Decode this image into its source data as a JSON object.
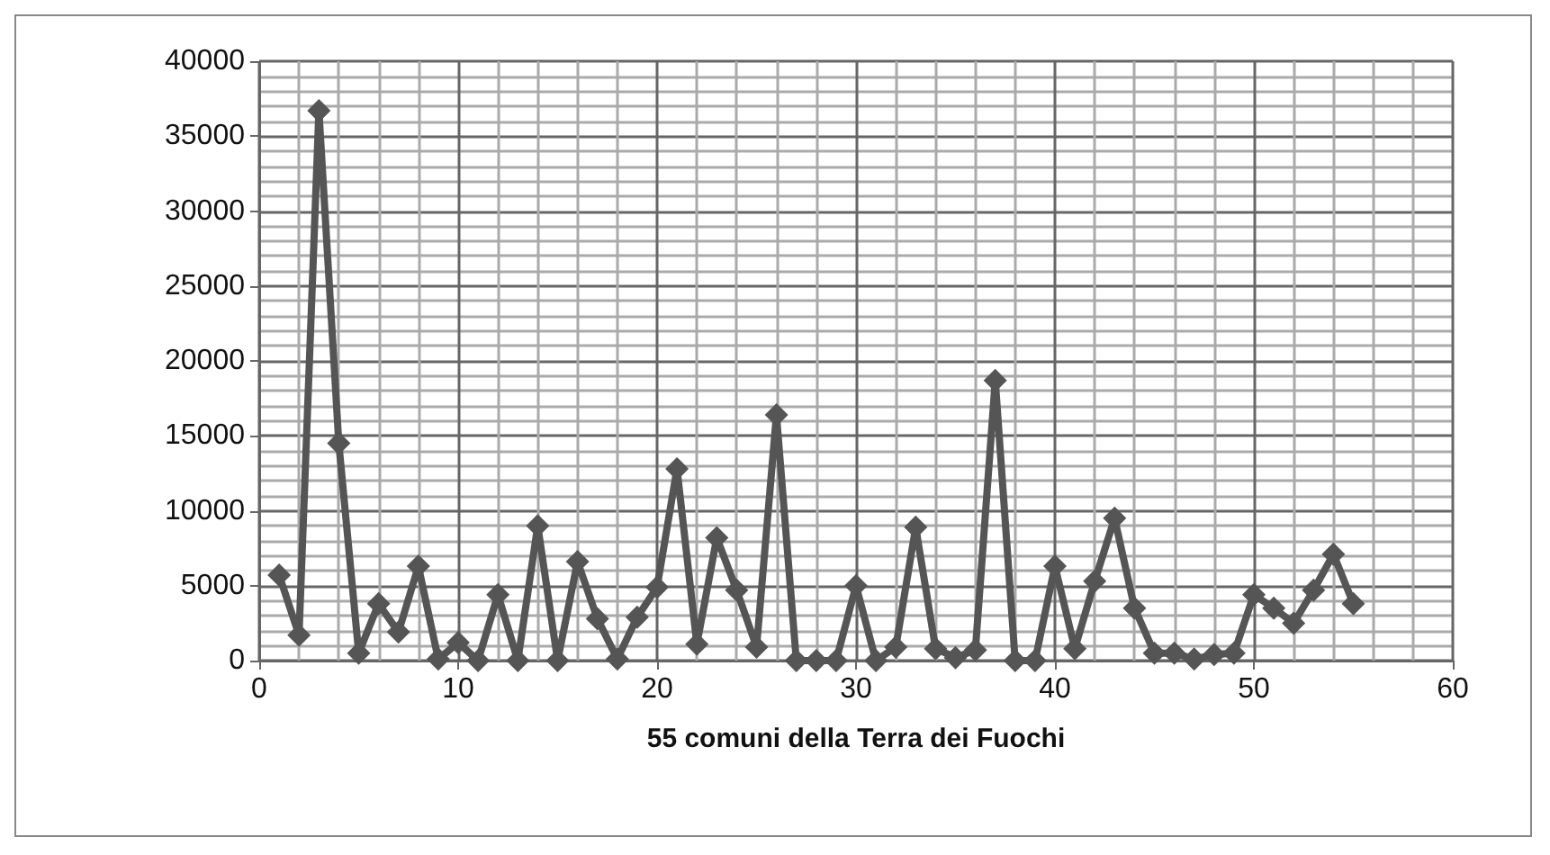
{
  "chart_data": {
    "type": "line",
    "xlabel": "55 comuni della Terra dei Fuochi",
    "x": [
      1,
      2,
      3,
      4,
      5,
      6,
      7,
      8,
      9,
      10,
      11,
      12,
      13,
      14,
      15,
      16,
      17,
      18,
      19,
      20,
      21,
      22,
      23,
      24,
      25,
      26,
      27,
      28,
      29,
      30,
      31,
      32,
      33,
      34,
      35,
      36,
      37,
      38,
      39,
      40,
      41,
      42,
      43,
      44,
      45,
      46,
      47,
      48,
      49,
      50,
      51,
      52,
      53,
      54,
      55
    ],
    "series": [
      {
        "color": "#555555",
        "values": [
          5700,
          1700,
          36700,
          14500,
          500,
          3800,
          1900,
          6300,
          100,
          1200,
          0,
          4400,
          0,
          9000,
          0,
          6600,
          2800,
          100,
          2900,
          4900,
          12800,
          1100,
          8200,
          4700,
          900,
          16400,
          0,
          0,
          0,
          5000,
          0,
          900,
          8900,
          800,
          200,
          700,
          18700,
          0,
          0,
          6300,
          800,
          5300,
          9500,
          3500,
          500,
          500,
          100,
          400,
          500,
          4400,
          3500,
          2500,
          4700,
          7100,
          3800
        ]
      }
    ],
    "xlim": [
      0,
      60
    ],
    "xticks": [
      0,
      10,
      20,
      30,
      40,
      50,
      60
    ],
    "ylim": [
      0,
      40000
    ],
    "yticks": [
      0,
      5000,
      10000,
      15000,
      20000,
      25000,
      30000,
      35000,
      40000
    ],
    "grid": true,
    "marker": "diamond",
    "line_style": "solid"
  }
}
